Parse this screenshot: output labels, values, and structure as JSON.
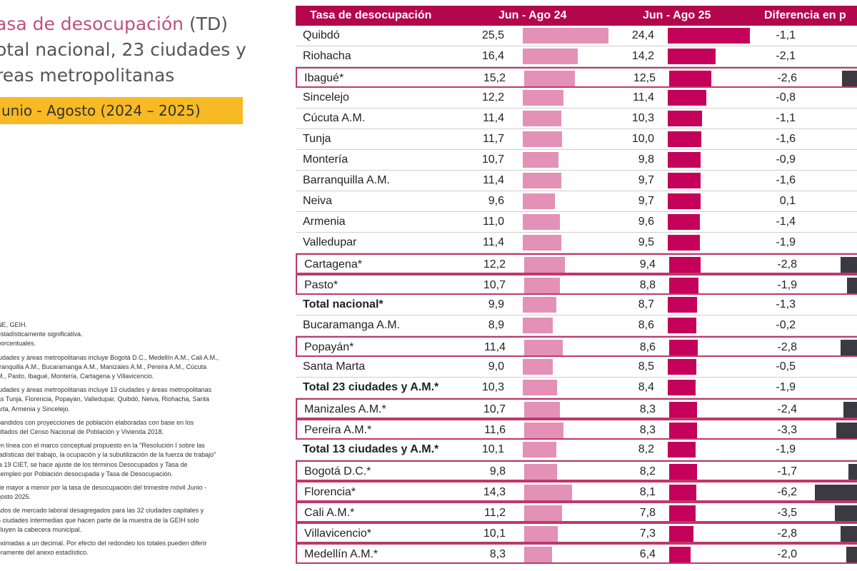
{
  "title": {
    "line1_main": "asa de desocupación",
    "line1_td": "(TD)",
    "line2": "otal nacional, 23 ciudades y",
    "line3": "reas metropolitanas"
  },
  "period": "unio - Agosto (2024 – 2025)",
  "notes": [
    "NE, GEIH.",
    "estadísticamente significativa.",
    "porcentuales.",
    "iudades y áreas metropolitanas incluye Bogotá D.C., Medellín A.M., Cali A.M.,",
    "rranquilla A.M., Bucaramanga A.M., Manizales A.M., Pereira A.M., Cúcuta",
    "M., Pasto, Ibagué, Montería, Cartagena y Villavicencio.",
    "iudades y áreas metropolitanas incluye 13 ciudades y áreas metropolitanas",
    "ás Tunja, Florencia, Popayán, Valledupar, Quibdó, Neiva, Riohacha, Santa",
    "arta, Armenia y Sincelejo.",
    "pandidos con proyecciones de población elaboradas con base en los",
    "ultados del Censo Nacional de Población y Vivienda 2018.",
    "en línea con el marco conceptual propuesto en la \"Resolución I sobre las",
    "tadísticas del trabajo, la ocupación y la subutilización de la fuerza de trabajo\"",
    "la 19 CIET, se hace ajuste de los términos Desocupados y Tasa de",
    "sempleo por Población desocupada y Tasa de Desocupación.",
    "de mayor a menor por la tasa de desocupación del trimestre móvil Junio -",
    "gosto 2025.",
    "ados de mercado laboral desagregados para las 32 ciudades capitales y",
    "5 ciudades intermedias que hacen parte de la muestra de la GEIH solo",
    "cluyen la cabecera municipal.",
    "oximadas a un decimal. Por efecto del redondeo los totales pueden diferir",
    "eramente del anexo estadístico."
  ],
  "table_header": {
    "col_city": "Tasa de desocupación",
    "col_24": "Jun - Ago 24",
    "col_25": "Jun - Ago 25",
    "col_diff": "Diferencia en p"
  },
  "colors": {
    "header": "#b3064d",
    "bar_2024": "#e391b6",
    "bar_2025": "#c4005a",
    "bar_diff_significant": "#3a3a40",
    "highlight_border": "#c0376c",
    "period_tag": "#f7b924"
  },
  "chart_data": {
    "type": "bar",
    "title": "Tasa de desocupación",
    "categories": [
      "Quibdó",
      "Riohacha",
      "Ibagué*",
      "Sincelejo",
      "Cúcuta A.M.",
      "Tunja",
      "Montería",
      "Barranquilla A.M.",
      "Neiva",
      "Armenia",
      "Valledupar",
      "Cartagena*",
      "Pasto*",
      "Total nacional*",
      "Bucaramanga A.M.",
      "Popayán*",
      "Santa Marta",
      "Total 23 ciudades y A.M.*",
      "Manizales A.M.*",
      "Pereira A.M.*",
      "Total 13 ciudades y A.M.*",
      "Bogotá D.C.*",
      "Florencia*",
      "Cali A.M.*",
      "Villavicencio*",
      "Medellín A.M.*"
    ],
    "series": [
      {
        "name": "Jun - Ago 24",
        "values": [
          "25,5",
          "16,4",
          "15,2",
          "12,2",
          "11,4",
          "11,7",
          "10,7",
          "11,4",
          "9,6",
          "11,0",
          "11,4",
          "12,2",
          "10,7",
          "9,9",
          "8,9",
          "11,4",
          "9,0",
          "10,3",
          "10,7",
          "11,6",
          "10,1",
          "9,8",
          "14,3",
          "11,2",
          "10,1",
          "8,3"
        ]
      },
      {
        "name": "Jun - Ago 25",
        "values": [
          "24,4",
          "14,2",
          "12,5",
          "11,4",
          "10,3",
          "10,0",
          "9,8",
          "9,7",
          "9,7",
          "9,6",
          "9,5",
          "9,4",
          "8,8",
          "8,7",
          "8,6",
          "8,6",
          "8,5",
          "8,4",
          "8,3",
          "8,3",
          "8,2",
          "8,2",
          "8,1",
          "7,8",
          "7,3",
          "6,4"
        ]
      },
      {
        "name": "Diferencia en p",
        "values": [
          "-1,1",
          "-2,1",
          "-2,6",
          "-0,8",
          "-1,1",
          "-1,6",
          "-0,9",
          "-1,6",
          "0,1",
          "-1,4",
          "-1,9",
          "-2,8",
          "-1,9",
          "-1,3",
          "-0,2",
          "-2,8",
          "-0,5",
          "-1,9",
          "-2,4",
          "-3,3",
          "-1,9",
          "-1,7",
          "-6,2",
          "-3,5",
          "-2,8",
          "-2,0"
        ]
      }
    ],
    "bold_rows": [
      "Total nacional*",
      "Total 23 ciudades y A.M.*",
      "Total 13 ciudades y A.M.*"
    ],
    "highlighted_rows": [
      "Ibagué*",
      "Cartagena*",
      "Pasto*",
      "Popayán*",
      "Manizales A.M.*",
      "Pereira A.M.*",
      "Bogotá D.C.*",
      "Florencia*",
      "Cali A.M.*",
      "Villavicencio*",
      "Medellín A.M.*"
    ]
  }
}
